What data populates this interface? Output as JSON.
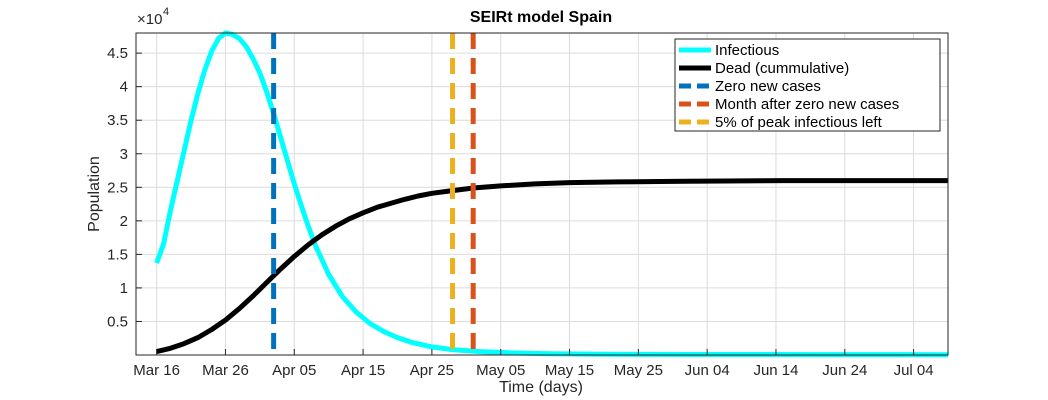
{
  "chart_data": {
    "type": "line",
    "title": "SEIRt model Spain",
    "xlabel": "Time (days)",
    "ylabel": "Population",
    "y_exponent_label": "×10",
    "y_exponent": "4",
    "xlim": [
      "2020-03-13",
      "2020-07-09"
    ],
    "ylim": [
      0,
      4.8
    ],
    "y_scale_factor": 10000,
    "grid": true,
    "legend_position": "top-right",
    "x_ticks": [
      {
        "date": "2020-03-16",
        "label": "Mar 16"
      },
      {
        "date": "2020-03-26",
        "label": "Mar 26"
      },
      {
        "date": "2020-04-05",
        "label": "Apr 05"
      },
      {
        "date": "2020-04-15",
        "label": "Apr 15"
      },
      {
        "date": "2020-04-25",
        "label": "Apr 25"
      },
      {
        "date": "2020-05-05",
        "label": "May 05"
      },
      {
        "date": "2020-05-15",
        "label": "May 15"
      },
      {
        "date": "2020-05-25",
        "label": "May 25"
      },
      {
        "date": "2020-06-04",
        "label": "Jun 04"
      },
      {
        "date": "2020-06-14",
        "label": "Jun 14"
      },
      {
        "date": "2020-06-24",
        "label": "Jun 24"
      },
      {
        "date": "2020-07-04",
        "label": "Jul 04"
      }
    ],
    "y_ticks": [
      {
        "value": 0.5,
        "label": "0.5"
      },
      {
        "value": 1,
        "label": "1"
      },
      {
        "value": 1.5,
        "label": "1.5"
      },
      {
        "value": 2,
        "label": "2"
      },
      {
        "value": 2.5,
        "label": "2.5"
      },
      {
        "value": 3,
        "label": "3"
      },
      {
        "value": 3.5,
        "label": "3.5"
      },
      {
        "value": 4,
        "label": "4"
      },
      {
        "value": 4.5,
        "label": "4.5"
      }
    ],
    "series": [
      {
        "name": "Infectious",
        "style": "solid",
        "color": "#00ffff",
        "points": [
          [
            "2020-03-16",
            1.37
          ],
          [
            "2020-03-17",
            1.65
          ],
          [
            "2020-03-18",
            2.15
          ],
          [
            "2020-03-19",
            2.6
          ],
          [
            "2020-03-20",
            3.05
          ],
          [
            "2020-03-21",
            3.5
          ],
          [
            "2020-03-22",
            3.9
          ],
          [
            "2020-03-23",
            4.25
          ],
          [
            "2020-03-24",
            4.53
          ],
          [
            "2020-03-25",
            4.72
          ],
          [
            "2020-03-26",
            4.8
          ],
          [
            "2020-03-27",
            4.78
          ],
          [
            "2020-03-28",
            4.72
          ],
          [
            "2020-03-29",
            4.6
          ],
          [
            "2020-03-30",
            4.42
          ],
          [
            "2020-03-31",
            4.2
          ],
          [
            "2020-04-01",
            3.92
          ],
          [
            "2020-04-02",
            3.6
          ],
          [
            "2020-04-03",
            3.25
          ],
          [
            "2020-04-04",
            2.9
          ],
          [
            "2020-04-05",
            2.55
          ],
          [
            "2020-04-06",
            2.23
          ],
          [
            "2020-04-07",
            1.93
          ],
          [
            "2020-04-08",
            1.65
          ],
          [
            "2020-04-10",
            1.2
          ],
          [
            "2020-04-12",
            0.87
          ],
          [
            "2020-04-14",
            0.64
          ],
          [
            "2020-04-16",
            0.47
          ],
          [
            "2020-04-18",
            0.35
          ],
          [
            "2020-04-20",
            0.26
          ],
          [
            "2020-04-22",
            0.19
          ],
          [
            "2020-04-25",
            0.12
          ],
          [
            "2020-04-28",
            0.08
          ],
          [
            "2020-05-02",
            0.05
          ],
          [
            "2020-05-07",
            0.03
          ],
          [
            "2020-05-12",
            0.02
          ],
          [
            "2020-05-20",
            0.01
          ],
          [
            "2020-06-01",
            0.008
          ],
          [
            "2020-06-20",
            0.006
          ],
          [
            "2020-07-09",
            0.005
          ]
        ]
      },
      {
        "name": "Dead (cummulative)",
        "style": "solid",
        "color": "#000000",
        "points": [
          [
            "2020-03-16",
            0.05
          ],
          [
            "2020-03-18",
            0.1
          ],
          [
            "2020-03-20",
            0.17
          ],
          [
            "2020-03-22",
            0.26
          ],
          [
            "2020-03-24",
            0.38
          ],
          [
            "2020-03-26",
            0.52
          ],
          [
            "2020-03-28",
            0.69
          ],
          [
            "2020-03-30",
            0.88
          ],
          [
            "2020-04-01",
            1.08
          ],
          [
            "2020-04-03",
            1.28
          ],
          [
            "2020-04-05",
            1.47
          ],
          [
            "2020-04-07",
            1.64
          ],
          [
            "2020-04-09",
            1.79
          ],
          [
            "2020-04-11",
            1.92
          ],
          [
            "2020-04-13",
            2.03
          ],
          [
            "2020-04-15",
            2.12
          ],
          [
            "2020-04-17",
            2.2
          ],
          [
            "2020-04-19",
            2.26
          ],
          [
            "2020-04-21",
            2.32
          ],
          [
            "2020-04-23",
            2.37
          ],
          [
            "2020-04-25",
            2.41
          ],
          [
            "2020-04-28",
            2.45
          ],
          [
            "2020-05-01",
            2.49
          ],
          [
            "2020-05-05",
            2.52
          ],
          [
            "2020-05-10",
            2.55
          ],
          [
            "2020-05-15",
            2.57
          ],
          [
            "2020-05-22",
            2.58
          ],
          [
            "2020-06-01",
            2.59
          ],
          [
            "2020-06-15",
            2.6
          ],
          [
            "2020-07-09",
            2.6
          ]
        ]
      }
    ],
    "vertical_lines": [
      {
        "name": "Zero new cases",
        "date": "2020-04-02",
        "color": "#0072bd",
        "style": "dashed"
      },
      {
        "name": "Month after zero new cases",
        "date": "2020-05-01",
        "color": "#d95319",
        "style": "dashed"
      },
      {
        "name": "5% of peak infectious left",
        "date": "2020-04-28",
        "color": "#edb120",
        "style": "dashed"
      }
    ],
    "legend_order": [
      {
        "name": "Infectious",
        "color": "#00ffff",
        "style": "solid"
      },
      {
        "name": "Dead (cummulative)",
        "color": "#000000",
        "style": "solid"
      },
      {
        "name": "Zero new cases",
        "color": "#0072bd",
        "style": "dashed"
      },
      {
        "name": "Month after zero new cases",
        "color": "#d95319",
        "style": "dashed"
      },
      {
        "name": "5% of peak infectious left",
        "color": "#edb120",
        "style": "dashed"
      }
    ]
  }
}
